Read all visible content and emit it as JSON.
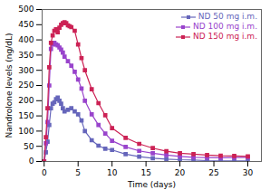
{
  "chart_data": {
    "type": "line",
    "xlabel": "Time (days)",
    "ylabel": "Nandrolone levels (ng/dL)",
    "xlim": [
      -0.3,
      32
    ],
    "ylim": [
      0,
      500
    ],
    "xticks": [
      0,
      5,
      10,
      15,
      20,
      25,
      30
    ],
    "yticks": [
      0,
      50,
      100,
      150,
      200,
      250,
      300,
      350,
      400,
      450,
      500
    ],
    "grid": false,
    "legend": "upper right",
    "marker": "square",
    "line_style": "solid",
    "series": [
      {
        "name": "ND 50 mg i.m.",
        "color": "#6666bb",
        "x": [
          0,
          0.25,
          0.5,
          0.75,
          1.0,
          1.25,
          1.5,
          1.75,
          2.0,
          2.25,
          2.5,
          2.75,
          3.0,
          3.5,
          4.0,
          4.5,
          5.0,
          5.5,
          6.0,
          7.0,
          8.0,
          9.0,
          10.0,
          12.0,
          14.0,
          16.0,
          18.0,
          20.0,
          22.0,
          24.0,
          26.0,
          28.0,
          30.0
        ],
        "values": [
          0,
          30,
          65,
          120,
          175,
          190,
          195,
          205,
          210,
          200,
          190,
          175,
          165,
          170,
          175,
          165,
          155,
          135,
          100,
          70,
          52,
          42,
          38,
          24,
          16,
          11,
          8,
          6,
          5,
          3,
          2,
          2,
          2
        ]
      },
      {
        "name": "ND 100 mg i.m.",
        "color": "#9944cc",
        "x": [
          0,
          0.25,
          0.5,
          0.75,
          1.0,
          1.25,
          1.5,
          1.75,
          2.0,
          2.25,
          2.5,
          2.75,
          3.0,
          3.5,
          4.0,
          4.5,
          5.0,
          5.5,
          6.0,
          7.0,
          8.0,
          9.0,
          10.0,
          12.0,
          14.0,
          16.0,
          18.0,
          20.0,
          22.0,
          24.0,
          26.0,
          28.0,
          30.0
        ],
        "values": [
          0,
          60,
          130,
          250,
          370,
          385,
          390,
          385,
          382,
          375,
          368,
          358,
          345,
          330,
          315,
          295,
          270,
          240,
          200,
          155,
          120,
          92,
          68,
          48,
          35,
          27,
          21,
          17,
          14,
          13,
          12,
          13,
          14
        ]
      },
      {
        "name": "ND 150 mg i.m.",
        "color": "#cc2255",
        "x": [
          0,
          0.25,
          0.5,
          0.75,
          1.0,
          1.25,
          1.5,
          1.75,
          2.0,
          2.25,
          2.5,
          2.75,
          3.0,
          3.25,
          3.5,
          3.75,
          4.0,
          4.5,
          5.0,
          5.5,
          6.0,
          7.0,
          8.0,
          9.0,
          10.0,
          12.0,
          14.0,
          16.0,
          18.0,
          20.0,
          22.0,
          24.0,
          26.0,
          28.0,
          30.0
        ],
        "values": [
          0,
          80,
          175,
          310,
          390,
          415,
          430,
          435,
          425,
          440,
          450,
          455,
          458,
          455,
          448,
          445,
          442,
          430,
          385,
          340,
          300,
          238,
          192,
          152,
          110,
          78,
          58,
          44,
          34,
          27,
          24,
          21,
          19,
          18,
          17
        ]
      }
    ]
  }
}
